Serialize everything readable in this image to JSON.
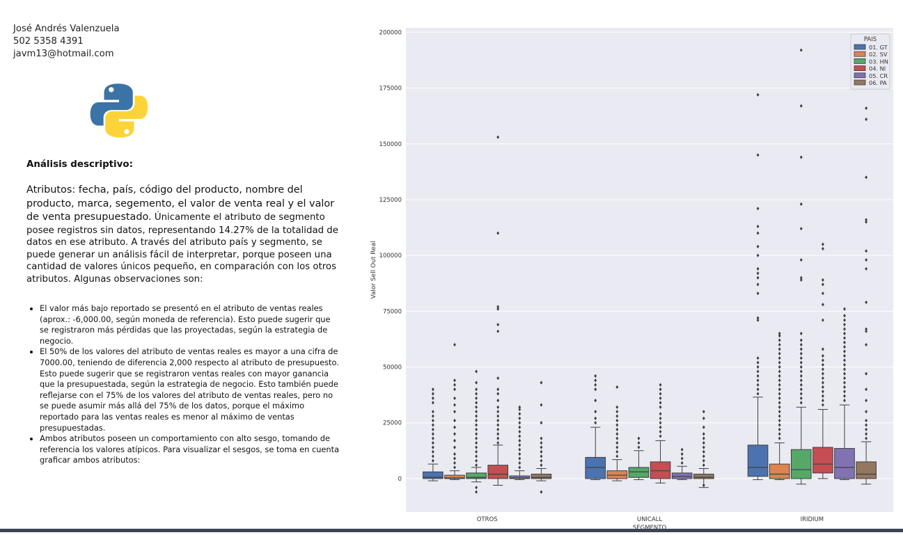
{
  "author": {
    "name": "José Andrés Valenzuela",
    "phone": "502 5358 4391",
    "email": "javm13@hotmail.com"
  },
  "logo_icon": "python-logo-icon",
  "analysis": {
    "heading": "Análisis descriptivo:",
    "lead": "Atributos: fecha, país, código del producto, nombre del producto, marca, segemento, el valor de venta real y el valor de venta presupuestado.",
    "body": " Únicamente el atributo de segmento posee registros sin datos, representando 14.27% de la totalidad de datos en ese atributo. A través del atributo país y segmento, se puede generar un análisis fácil de interpretar, porque poseen una cantidad de valores únicos pequeño, en comparación con los otros atributos. Algunas observaciones son:",
    "bullets": [
      "El valor más bajo reportado se presentó en el atributo de ventas reales (aprox.: -6,000.00, según moneda de referencia). Esto puede sugerir que se registraron más pérdidas que las proyectadas, según la estrategia de negocio.",
      "El 50% de los valores del atributo de ventas reales es mayor a una cifra de 7000.00, teniendo de diferencia 2,000 respecto al atributo de presupuesto. Esto puede sugerir que se registraron ventas reales con mayor ganancia que la presupuestada, según la estrategia de negocio. Esto también puede reflejarse con el 75% de los valores del atributo de ventas reales, pero no se puede asumir más allá del 75% de los datos, porque el máximo reportado para las ventas reales es menor al máximo de ventas presupuestadas.",
      "Ambos atributos poseen un comportamiento con alto sesgo, tomando de referencia los valores atípicos. Para visualizar el sesgos, se toma en cuenta graficar ambos atributos:"
    ]
  },
  "chart_data": {
    "type": "box",
    "xlabel": "SEGMENTO",
    "ylabel": "Valor Sell Out Real",
    "ylim": [
      -15000,
      202000
    ],
    "yticks": [
      0,
      25000,
      50000,
      75000,
      100000,
      125000,
      150000,
      175000,
      200000
    ],
    "grid": true,
    "legend": {
      "title": "PAIS",
      "placement": "top-right"
    },
    "categories": [
      "OTROS",
      "UNICALL",
      "IRIDIUM"
    ],
    "series": [
      {
        "name": "01. GT",
        "color": "#4c72b0",
        "boxes": [
          {
            "whislo": -1000,
            "q1": 0,
            "med": 600,
            "q3": 3000,
            "whishi": 6500,
            "fliers": [
              8000,
              10000,
              12000,
              14000,
              16000,
              18000,
              20000,
              22000,
              24000,
              26000,
              28000,
              30000,
              34000,
              36000,
              38000,
              40000
            ]
          },
          {
            "whislo": -500,
            "q1": 0,
            "med": 5000,
            "q3": 9500,
            "whishi": 23000,
            "fliers": [
              25000,
              27000,
              30000,
              35000,
              40000,
              42000,
              44000,
              46000
            ]
          },
          {
            "whislo": -500,
            "q1": 1000,
            "med": 5000,
            "q3": 15000,
            "whishi": 36500,
            "fliers": [
              38000,
              40000,
              42000,
              44000,
              46000,
              48000,
              50000,
              52000,
              54000,
              71000,
              72000,
              83000,
              87000,
              90000,
              92000,
              94000,
              100000,
              104000,
              110000,
              113000,
              121000,
              145000,
              172000
            ]
          }
        ]
      },
      {
        "name": "02. SV",
        "color": "#dd8452",
        "boxes": [
          {
            "whislo": -500,
            "q1": 0,
            "med": 300,
            "q3": 1500,
            "whishi": 3500,
            "fliers": [
              5000,
              7000,
              9000,
              11000,
              14000,
              17000,
              20000,
              23000,
              26000,
              30000,
              33000,
              36000,
              40000,
              42000,
              44000,
              60000
            ]
          },
          {
            "whislo": -1000,
            "q1": 0,
            "med": 1500,
            "q3": 3500,
            "whishi": 8500,
            "fliers": [
              10000,
              12000,
              14000,
              16000,
              18000,
              20000,
              22000,
              24000,
              26000,
              28000,
              30000,
              32000,
              41000
            ]
          },
          {
            "whislo": -500,
            "q1": 0,
            "med": 2000,
            "q3": 6500,
            "whishi": 16000,
            "fliers": [
              18000,
              20000,
              22000,
              24000,
              26000,
              28000,
              30000,
              32000,
              34000,
              36000,
              38000,
              40000,
              42000,
              44000,
              46000,
              48000,
              50000,
              52000,
              54000,
              56000,
              58000,
              60000,
              62000,
              64000,
              65000
            ]
          }
        ]
      },
      {
        "name": "03. HN",
        "color": "#55a868",
        "boxes": [
          {
            "whislo": -1500,
            "q1": 0,
            "med": 500,
            "q3": 2500,
            "whishi": 5000,
            "fliers": [
              -6000,
              -4000,
              6000,
              8000,
              10000,
              12000,
              14000,
              16000,
              18000,
              20000,
              22000,
              24000,
              26000,
              28000,
              30000,
              32000,
              34000,
              36000,
              38000,
              40000,
              43000,
              48000
            ]
          },
          {
            "whislo": -500,
            "q1": 500,
            "med": 3000,
            "q3": 5000,
            "whishi": 12500,
            "fliers": [
              14000,
              16000,
              18000
            ]
          },
          {
            "whislo": -2500,
            "q1": 0,
            "med": 4000,
            "q3": 13000,
            "whishi": 32000,
            "fliers": [
              34000,
              36000,
              38000,
              40000,
              42000,
              44000,
              46000,
              48000,
              50000,
              52000,
              54000,
              56000,
              58000,
              60000,
              62000,
              65000,
              89000,
              90000,
              98000,
              112000,
              123000,
              144000,
              167000,
              192000
            ]
          }
        ]
      },
      {
        "name": "04. NI",
        "color": "#c44e52",
        "boxes": [
          {
            "whislo": -3000,
            "q1": 0,
            "med": 2000,
            "q3": 6000,
            "whishi": 15000,
            "fliers": [
              16000,
              18000,
              20000,
              22000,
              24000,
              26000,
              28000,
              30000,
              32000,
              35000,
              38000,
              40000,
              45000,
              66000,
              69000,
              76000,
              77000,
              110000,
              153000
            ]
          },
          {
            "whislo": -2000,
            "q1": 0,
            "med": 3500,
            "q3": 7500,
            "whishi": 17000,
            "fliers": [
              19000,
              21000,
              23000,
              25000,
              27000,
              29000,
              32000,
              34000,
              36000,
              38000,
              40000,
              42000
            ]
          },
          {
            "whislo": 0,
            "q1": 2500,
            "med": 6500,
            "q3": 14000,
            "whishi": 31000,
            "fliers": [
              33000,
              35000,
              37000,
              39000,
              41000,
              43000,
              45000,
              47000,
              49000,
              51000,
              53000,
              55000,
              58000,
              71000,
              78000,
              83000,
              87000,
              89000,
              103000,
              105000
            ]
          }
        ]
      },
      {
        "name": "05. CR",
        "color": "#8172b2",
        "boxes": [
          {
            "whislo": -500,
            "q1": 0,
            "med": 300,
            "q3": 1200,
            "whishi": 3500,
            "fliers": [
              5000,
              7000,
              9000,
              11000,
              13000,
              15000,
              17000,
              19000,
              21000,
              23000,
              25000,
              27000,
              29000,
              31000,
              32000
            ]
          },
          {
            "whislo": -500,
            "q1": 0,
            "med": 1000,
            "q3": 2500,
            "whishi": 5500,
            "fliers": [
              7000,
              9000,
              11000,
              13000
            ]
          },
          {
            "whislo": -500,
            "q1": 0,
            "med": 5000,
            "q3": 13500,
            "whishi": 33000,
            "fliers": [
              35000,
              37000,
              39000,
              41000,
              43000,
              45000,
              47000,
              49000,
              51000,
              53000,
              55000,
              57000,
              59000,
              61000,
              63000,
              65000,
              67000,
              69000,
              71000,
              73000,
              76000
            ]
          }
        ]
      },
      {
        "name": "06. PA",
        "color": "#937860",
        "boxes": [
          {
            "whislo": -1000,
            "q1": 0,
            "med": 500,
            "q3": 2000,
            "whishi": 4500,
            "fliers": [
              -6000,
              6000,
              8000,
              10000,
              12000,
              14000,
              16000,
              18000,
              25000,
              33000,
              43000
            ]
          },
          {
            "whislo": -4000,
            "q1": 0,
            "med": 600,
            "q3": 2000,
            "whishi": 4500,
            "fliers": [
              -3000,
              6000,
              8000,
              10000,
              12000,
              14000,
              16000,
              18000,
              20000,
              23000,
              27000,
              30000
            ]
          },
          {
            "whislo": -2500,
            "q1": 0,
            "med": 2000,
            "q3": 7500,
            "whishi": 16500,
            "fliers": [
              18000,
              20000,
              22000,
              24000,
              26000,
              30000,
              35000,
              40000,
              47000,
              60000,
              66000,
              67000,
              79000,
              94000,
              98000,
              102000,
              115000,
              116000,
              135000,
              161000,
              166000
            ]
          }
        ]
      }
    ]
  }
}
